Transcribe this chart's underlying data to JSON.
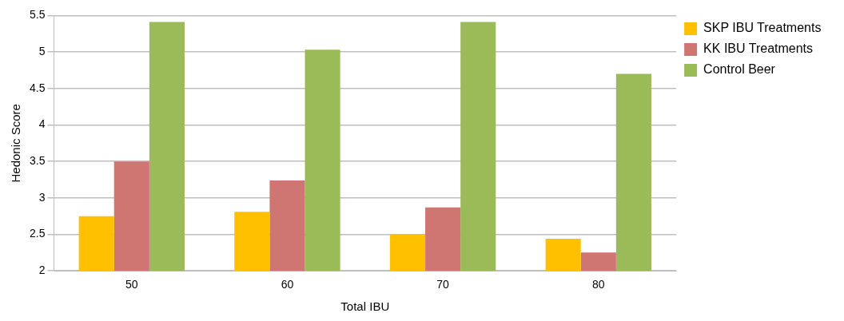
{
  "chart_data": {
    "type": "bar",
    "xlabel": "Total IBU",
    "ylabel": "Hedonic Score",
    "categories": [
      "50",
      "60",
      "70",
      "80"
    ],
    "series": [
      {
        "name": "SKP IBU Treatments",
        "color": "#ffc000",
        "values": [
          2.75,
          2.81,
          2.5,
          2.44
        ]
      },
      {
        "name": "KK IBU Treatments",
        "color": "#cf7672",
        "values": [
          3.5,
          3.24,
          2.87,
          2.25
        ]
      },
      {
        "name": "Control Beer",
        "color": "#9bbb59",
        "values": [
          5.41,
          5.03,
          5.41,
          4.7
        ]
      }
    ],
    "ylim": [
      2,
      5.5
    ],
    "yticks": [
      2,
      2.5,
      3,
      3.5,
      4,
      4.5,
      5,
      5.5
    ],
    "grid": "y",
    "legend": "right"
  }
}
